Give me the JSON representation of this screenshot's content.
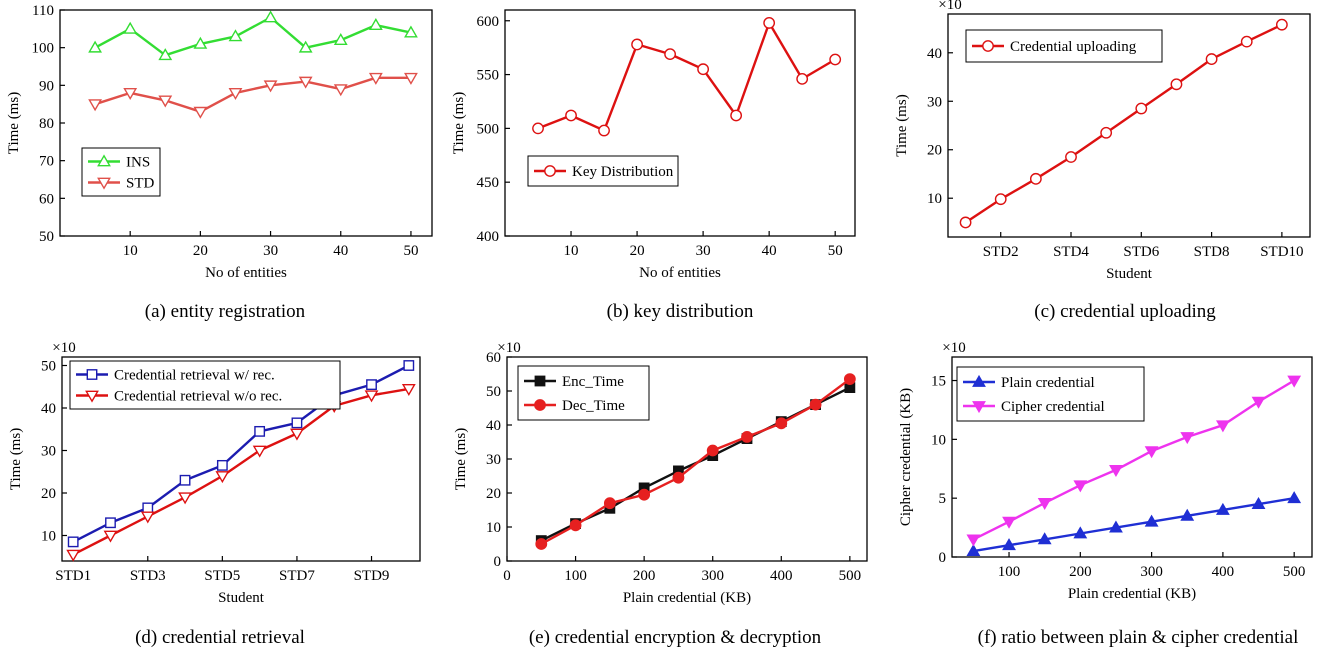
{
  "chart_data": [
    {
      "id": "a",
      "type": "line",
      "caption": "(a) entity registration",
      "xlabel": "No of entities",
      "ylabel": "Time (ms)",
      "xlim": [
        0,
        53
      ],
      "ylim": [
        50,
        110
      ],
      "xticks": [
        10,
        20,
        30,
        40,
        50
      ],
      "yticks": [
        50,
        60,
        70,
        80,
        90,
        100,
        110
      ],
      "multiplier": "",
      "legend": "middle-left",
      "x": [
        5,
        10,
        15,
        20,
        25,
        30,
        35,
        40,
        45,
        50
      ],
      "series": [
        {
          "name": "INS",
          "color": "#33dd33",
          "marker": "triangle-up-open",
          "values": [
            100,
            105,
            98,
            101,
            103,
            108,
            100,
            102,
            106,
            104
          ]
        },
        {
          "name": "STD",
          "color": "#e0504a",
          "marker": "triangle-down-open",
          "values": [
            85,
            88,
            86,
            83,
            88,
            90,
            91,
            89,
            92,
            92
          ]
        }
      ]
    },
    {
      "id": "b",
      "type": "line",
      "caption": "(b) key distribution",
      "xlabel": "No of entities",
      "ylabel": "Time (ms)",
      "xlim": [
        0,
        53
      ],
      "ylim": [
        400,
        610
      ],
      "xticks": [
        10,
        20,
        30,
        40,
        50
      ],
      "yticks": [
        400,
        450,
        500,
        550,
        600
      ],
      "multiplier": "",
      "legend": "middle-left",
      "x": [
        5,
        10,
        15,
        20,
        25,
        30,
        35,
        40,
        45,
        50
      ],
      "series": [
        {
          "name": "Key Distribution",
          "color": "#dd1111",
          "marker": "circle-open",
          "values": [
            500,
            512,
            498,
            578,
            569,
            555,
            512,
            598,
            546,
            564
          ]
        }
      ]
    },
    {
      "id": "c",
      "type": "line",
      "caption": "(c) credential uploading",
      "xlabel": "Student",
      "ylabel": "Time (ms)",
      "xlim": [
        0.5,
        10.8
      ],
      "ylim": [
        2,
        48
      ],
      "xticks": [
        2,
        4,
        6,
        8,
        10
      ],
      "xticklabels": [
        "STD2",
        "STD4",
        "STD6",
        "STD8",
        "STD10"
      ],
      "yticks": [
        10,
        20,
        30,
        40
      ],
      "multiplier": "×10³",
      "legend": "top-left",
      "x": [
        1,
        2,
        3,
        4,
        5,
        6,
        7,
        8,
        9,
        10
      ],
      "series": [
        {
          "name": "Credential uploading",
          "color": "#dd1111",
          "marker": "circle-open",
          "values": [
            5,
            9.8,
            14,
            18.5,
            23.5,
            28.5,
            33.5,
            38.7,
            42.3,
            45.8
          ]
        }
      ]
    },
    {
      "id": "d",
      "type": "line",
      "caption": "(d) credential retrieval",
      "xlabel": "Student",
      "ylabel": "Time (ms)",
      "xlim": [
        0.7,
        10.3
      ],
      "ylim": [
        4,
        52
      ],
      "xticks": [
        1,
        3,
        5,
        7,
        9
      ],
      "xticklabels": [
        "STD1",
        "STD3",
        "STD5",
        "STD7",
        "STD9"
      ],
      "yticks": [
        10,
        20,
        30,
        40,
        50
      ],
      "multiplier": "×10³",
      "legend": "top-left",
      "x": [
        1,
        2,
        3,
        4,
        5,
        6,
        7,
        8,
        9,
        10
      ],
      "series": [
        {
          "name": "Credential retrieval w/ rec.",
          "color": "#1c1cb0",
          "marker": "square-open",
          "values": [
            8.5,
            13,
            16.5,
            23,
            26.5,
            34.5,
            36.5,
            43,
            45.5,
            50
          ]
        },
        {
          "name": "Credential retrieval w/o rec.",
          "color": "#dd1111",
          "marker": "triangle-down-open",
          "values": [
            5.5,
            10,
            14.5,
            19,
            24,
            30,
            34,
            40.5,
            43,
            44.5
          ]
        }
      ]
    },
    {
      "id": "e",
      "type": "line",
      "caption": "(e) credential encryption & decryption",
      "xlabel": "Plain credential (KB)",
      "ylabel": "Time (ms)",
      "xlim": [
        0,
        525
      ],
      "ylim": [
        0,
        60
      ],
      "xticks": [
        0,
        100,
        200,
        300,
        400,
        500
      ],
      "yticks": [
        0,
        10,
        20,
        30,
        40,
        50,
        60
      ],
      "multiplier": "×10³",
      "legend": "top-left",
      "x": [
        50,
        100,
        150,
        200,
        250,
        300,
        350,
        400,
        450,
        500
      ],
      "series": [
        {
          "name": "Enc_Time",
          "color": "#111111",
          "marker": "square-filled",
          "values": [
            6,
            11,
            15.5,
            21.5,
            26.5,
            31,
            36,
            41,
            46,
            51
          ]
        },
        {
          "name": "Dec_Time",
          "color": "#e62020",
          "marker": "circle-filled",
          "values": [
            5,
            10.5,
            17,
            19.5,
            24.5,
            32.5,
            36.5,
            40.5,
            46,
            53.5
          ]
        }
      ]
    },
    {
      "id": "f",
      "type": "line",
      "caption": "(f) ratio between plain & cipher credential",
      "xlabel": "Plain credential (KB)",
      "ylabel": "Cipher credential (KB)",
      "xlim": [
        20,
        525
      ],
      "ylim": [
        0,
        17
      ],
      "xticks": [
        100,
        200,
        300,
        400,
        500
      ],
      "yticks": [
        0,
        5,
        10,
        15
      ],
      "multiplier": "×10²",
      "legend": "top-left",
      "x": [
        50,
        100,
        150,
        200,
        250,
        300,
        350,
        400,
        450,
        500
      ],
      "series": [
        {
          "name": "Plain credential",
          "color": "#1f2fd4",
          "marker": "triangle-up-filled",
          "values": [
            0.5,
            1,
            1.5,
            2,
            2.5,
            3,
            3.5,
            4,
            4.5,
            5
          ]
        },
        {
          "name": "Cipher credential",
          "color": "#ee33ee",
          "marker": "triangle-down-filled",
          "values": [
            1.5,
            3,
            4.6,
            6.1,
            7.4,
            9,
            10.2,
            11.2,
            13.2,
            15
          ]
        }
      ]
    }
  ]
}
